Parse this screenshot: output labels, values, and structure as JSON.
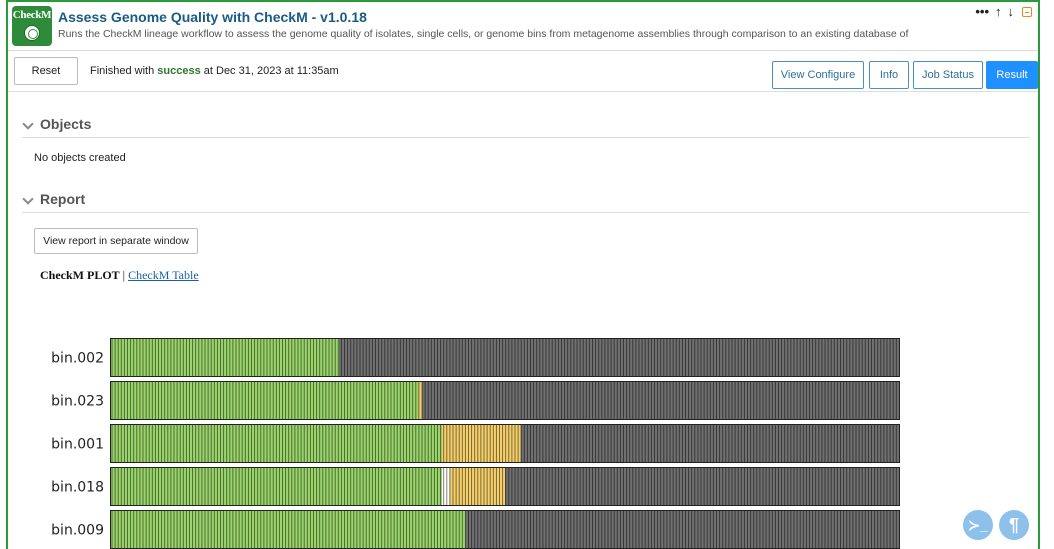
{
  "app": {
    "icon_label": "CheckM",
    "title": "Assess Genome Quality with CheckM - v1.0.18",
    "subtitle": "Runs the CheckM lineage workflow to assess the genome quality of isolates, single cells, or genome bins from metagenome assemblies through comparison to an existing database of"
  },
  "window_controls": {
    "more": "•••",
    "up": "↑",
    "down": "↓"
  },
  "toolbar": {
    "reset_label": "Reset",
    "status_prefix": "Finished with",
    "status_word": "success",
    "status_suffix": "at Dec 31, 2023 at 11:35am",
    "view_configure": "View Configure",
    "info": "Info",
    "job_status": "Job Status",
    "result": "Result"
  },
  "objects": {
    "heading": "Objects",
    "empty_text": "No objects created"
  },
  "report": {
    "heading": "Report",
    "view_separate": "View report in separate window",
    "plot_tab": "CheckM PLOT",
    "separator": "|",
    "table_tab": "CheckM Table"
  },
  "floating": {
    "terminal": "≻_",
    "paragraph": "¶"
  },
  "colors": {
    "green": "#9ad56a",
    "yellow": "#f4cf6a",
    "white": "#ffffff",
    "grey": "#707070",
    "dark": "#4a4a4a",
    "accent_blue": "#1e90ff",
    "cell_border": "#2a9a3a"
  },
  "chart_data": {
    "type": "bar",
    "orientation": "horizontal",
    "stacked": true,
    "categories": [
      "bin.002",
      "bin.023",
      "bin.001",
      "bin.018",
      "bin.009"
    ],
    "series": [
      {
        "color": "#9ad56a",
        "values": [
          29,
          39,
          42,
          42,
          45
        ]
      },
      {
        "color": "#ffffff",
        "values": [
          0,
          0,
          0,
          1,
          0
        ]
      },
      {
        "color": "#f4cf6a",
        "values": [
          0,
          0.5,
          10,
          7,
          0
        ]
      },
      {
        "color": "#707070",
        "values": [
          71,
          60.5,
          48,
          50,
          55
        ]
      }
    ],
    "background_colors_per_row": [
      "#4a4a4a",
      "#4a4a4a",
      "#707070",
      "#707070",
      "#4a4a4a"
    ],
    "xlim": [
      0,
      100
    ]
  }
}
